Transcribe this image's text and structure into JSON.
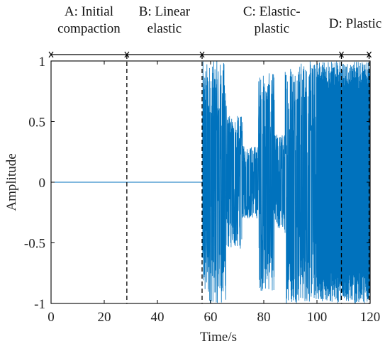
{
  "chart_data": {
    "type": "line",
    "title": "",
    "xlabel": "Time/s",
    "ylabel": "Amplitude",
    "xlim": [
      0,
      120
    ],
    "ylim": [
      -1,
      1
    ],
    "x_ticks": [
      0,
      20,
      40,
      60,
      80,
      100,
      120
    ],
    "x_tick_labels": [
      "0",
      "20",
      "40",
      "60",
      "80",
      "100",
      "120"
    ],
    "y_ticks": [
      -1,
      -0.5,
      0,
      0.5,
      1
    ],
    "y_tick_labels": [
      "-1",
      "-0.5",
      "0",
      "0.5",
      "1"
    ],
    "grid": false,
    "legend": "none",
    "series_color": "#0072BD",
    "boundaries": [
      28.5,
      56.8,
      109.2,
      119.6
    ],
    "stages": [
      {
        "label_lines": [
          "A: Initial",
          "compaction"
        ],
        "x_start": 0,
        "x_end": 28.5
      },
      {
        "label_lines": [
          "B: Linear",
          "elastic"
        ],
        "x_start": 28.5,
        "x_end": 56.8
      },
      {
        "label_lines": [
          "C: Elastic-",
          "plastic"
        ],
        "x_start": 56.8,
        "x_end": 109.2
      },
      {
        "label_lines": [
          "D: Plastic"
        ],
        "x_start": 109.2,
        "x_end": 119.6
      }
    ],
    "signal_segments": [
      {
        "x_start": 0,
        "x_end": 57,
        "amplitude": 0
      },
      {
        "x_start": 57,
        "x_end": 66,
        "amplitude": 1.0
      },
      {
        "x_start": 66,
        "x_end": 72,
        "amplitude": 0.55
      },
      {
        "x_start": 72,
        "x_end": 78,
        "amplitude": 0.3
      },
      {
        "x_start": 78,
        "x_end": 84,
        "amplitude": 0.9
      },
      {
        "x_start": 84,
        "x_end": 88,
        "amplitude": 0.4
      },
      {
        "x_start": 88,
        "x_end": 100,
        "amplitude": 1.0
      },
      {
        "x_start": 100,
        "x_end": 120,
        "amplitude": 1.0
      }
    ]
  }
}
